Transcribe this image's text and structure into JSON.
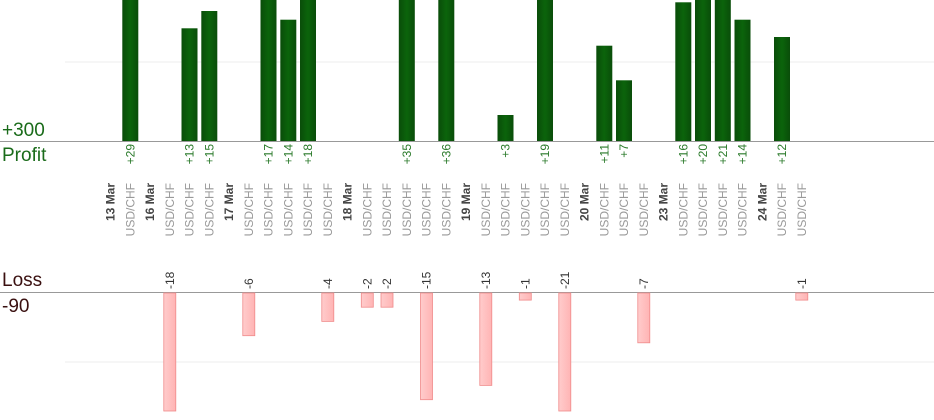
{
  "labels": {
    "profit_max": "+300",
    "profit_word": "Profit",
    "loss_word": "Loss",
    "loss_max": "-90"
  },
  "colors": {
    "profit_bar": "#0b640b",
    "profit_text": "#2a7a2a",
    "loss_bar": "#ffb4b4",
    "loss_text": "#333333",
    "date_text": "#444444",
    "symbol_text": "#999999",
    "axis": "#999999",
    "grid": "#eeeeee"
  },
  "chart_data": {
    "type": "bar",
    "profit_scale_max": 300,
    "loss_scale_max": 90,
    "dates": [
      "13 Mar",
      "16 Mar",
      "17 Mar",
      "18 Mar",
      "19 Mar",
      "20 Mar",
      "23 Mar",
      "24 Mar"
    ],
    "slots": [
      {
        "kind": "date",
        "text": "13 Mar"
      },
      {
        "kind": "trade",
        "symbol": "USD/CHF",
        "value": 29,
        "label": "+29"
      },
      {
        "kind": "date",
        "text": "16 Mar"
      },
      {
        "kind": "trade",
        "symbol": "USD/CHF",
        "value": -18,
        "label": "-18"
      },
      {
        "kind": "trade",
        "symbol": "USD/CHF",
        "value": 13,
        "label": "+13"
      },
      {
        "kind": "trade",
        "symbol": "USD/CHF",
        "value": 15,
        "label": "+15"
      },
      {
        "kind": "date",
        "text": "17 Mar"
      },
      {
        "kind": "trade",
        "symbol": "USD/CHF",
        "value": -6,
        "label": "-6"
      },
      {
        "kind": "trade",
        "symbol": "USD/CHF",
        "value": 17,
        "label": "+17"
      },
      {
        "kind": "trade",
        "symbol": "USD/CHF",
        "value": 14,
        "label": "+14"
      },
      {
        "kind": "trade",
        "symbol": "USD/CHF",
        "value": 18,
        "label": "+18"
      },
      {
        "kind": "trade",
        "symbol": "USD/CHF",
        "value": -4,
        "label": "-4"
      },
      {
        "kind": "date",
        "text": "18 Mar"
      },
      {
        "kind": "trade",
        "symbol": "USD/CHF",
        "value": -2,
        "label": "-2"
      },
      {
        "kind": "trade",
        "symbol": "USD/CHF",
        "value": -2,
        "label": "-2"
      },
      {
        "kind": "trade",
        "symbol": "USD/CHF",
        "value": 35,
        "label": "+35"
      },
      {
        "kind": "trade",
        "symbol": "USD/CHF",
        "value": -15,
        "label": "-15"
      },
      {
        "kind": "trade",
        "symbol": "USD/CHF",
        "value": 36,
        "label": "+36"
      },
      {
        "kind": "date",
        "text": "19 Mar"
      },
      {
        "kind": "trade",
        "symbol": "USD/CHF",
        "value": -13,
        "label": "-13"
      },
      {
        "kind": "trade",
        "symbol": "USD/CHF",
        "value": 3,
        "label": "+3"
      },
      {
        "kind": "trade",
        "symbol": "USD/CHF",
        "value": -1,
        "label": "-1"
      },
      {
        "kind": "trade",
        "symbol": "USD/CHF",
        "value": 19,
        "label": "+19"
      },
      {
        "kind": "trade",
        "symbol": "USD/CHF",
        "value": -21,
        "label": "-21"
      },
      {
        "kind": "date",
        "text": "20 Mar"
      },
      {
        "kind": "trade",
        "symbol": "USD/CHF",
        "value": 11,
        "label": "+11"
      },
      {
        "kind": "trade",
        "symbol": "USD/CHF",
        "value": 7,
        "label": "+7"
      },
      {
        "kind": "trade",
        "symbol": "USD/CHF",
        "value": -7,
        "label": "-7"
      },
      {
        "kind": "date",
        "text": "23 Mar"
      },
      {
        "kind": "trade",
        "symbol": "USD/CHF",
        "value": 16,
        "label": "+16"
      },
      {
        "kind": "trade",
        "symbol": "USD/CHF",
        "value": 20,
        "label": "+20"
      },
      {
        "kind": "trade",
        "symbol": "USD/CHF",
        "value": 21,
        "label": "+21"
      },
      {
        "kind": "trade",
        "symbol": "USD/CHF",
        "value": 14,
        "label": "+14"
      },
      {
        "kind": "date",
        "text": "24 Mar"
      },
      {
        "kind": "trade",
        "symbol": "USD/CHF",
        "value": 12,
        "label": "+12"
      },
      {
        "kind": "trade",
        "symbol": "USD/CHF",
        "value": -1,
        "label": "-1"
      }
    ]
  }
}
